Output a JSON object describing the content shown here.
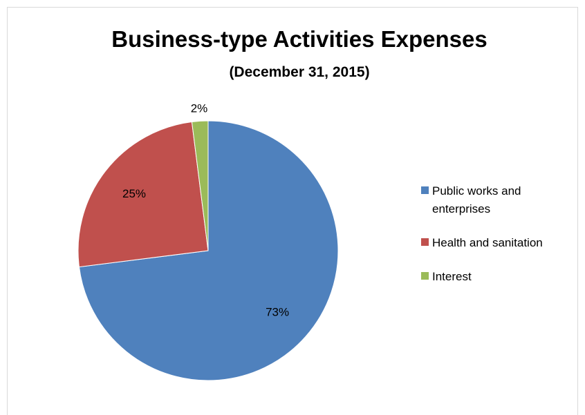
{
  "chart_data": {
    "type": "pie",
    "title": "Business-type Activities Expenses",
    "subtitle": "(December 31, 2015)",
    "categories": [
      "Public works and enterprises",
      "Health and sanitation",
      "Interest"
    ],
    "values": [
      73,
      25,
      2
    ],
    "labels": [
      "73%",
      "25%",
      "2%"
    ],
    "colors": [
      "#4f81bd",
      "#c0504d",
      "#9bbb59"
    ],
    "legend_position": "right"
  }
}
